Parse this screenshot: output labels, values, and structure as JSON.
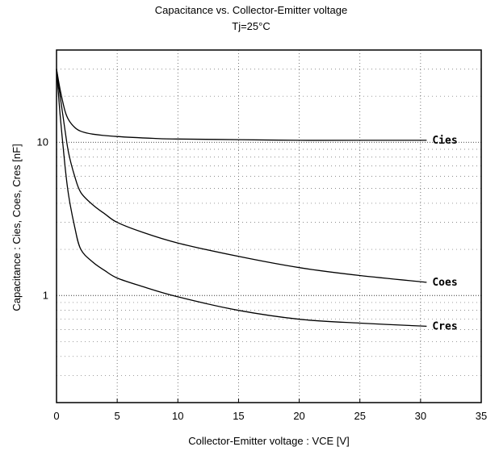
{
  "chart_data": {
    "type": "line",
    "title": "Capacitance  vs.  Collector-Emitter  voltage",
    "subtitle": "Tj=25°C",
    "xlabel": "Collector-Emitter  voltage   :   VCE [V]",
    "ylabel": "Capacitance   :   Cies,  Coes,  Cres  [nF]",
    "xlim": [
      0,
      35
    ],
    "ylim": [
      0.2,
      40
    ],
    "y_scale": "log",
    "grid": true,
    "x_ticks": [
      0,
      5,
      10,
      15,
      20,
      25,
      30,
      35
    ],
    "x_tick_labels": [
      "0",
      "5",
      "10",
      "15",
      "20",
      "25",
      "30",
      "35"
    ],
    "y_ticks": [
      1,
      10
    ],
    "y_tick_labels": [
      "1",
      "10"
    ],
    "series": [
      {
        "name": "Cies",
        "x": [
          0,
          0.3,
          0.7,
          1,
          1.5,
          2,
          3,
          5,
          8,
          10,
          15,
          20,
          25,
          30.5
        ],
        "values": [
          30,
          22,
          16,
          14,
          12.5,
          11.8,
          11.3,
          10.9,
          10.6,
          10.5,
          10.4,
          10.3,
          10.3,
          10.3
        ]
      },
      {
        "name": "Coes",
        "x": [
          0,
          0.3,
          0.7,
          1,
          1.5,
          2,
          3,
          4,
          5,
          7,
          10,
          15,
          20,
          25,
          30.5
        ],
        "values": [
          30,
          20,
          12,
          8.5,
          6,
          4.7,
          3.9,
          3.4,
          3.0,
          2.6,
          2.2,
          1.8,
          1.52,
          1.35,
          1.22
        ]
      },
      {
        "name": "Cres",
        "x": [
          0,
          0.3,
          0.7,
          1,
          1.5,
          2,
          3,
          4,
          5,
          7,
          10,
          15,
          20,
          25,
          30.5
        ],
        "values": [
          30,
          15,
          7,
          4.5,
          2.8,
          2.0,
          1.65,
          1.45,
          1.3,
          1.15,
          0.98,
          0.8,
          0.7,
          0.66,
          0.63
        ]
      }
    ]
  }
}
